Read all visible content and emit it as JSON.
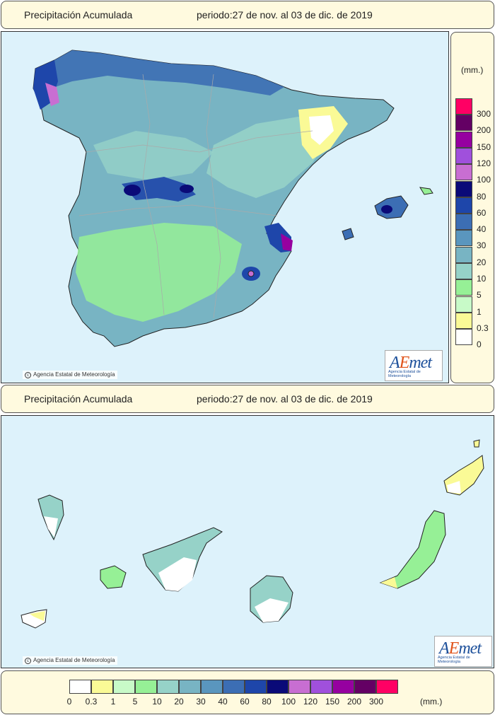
{
  "header_top": {
    "title": "Precipitación Acumulada",
    "period": "periodo:27 de nov. al 03 de dic. de 2019"
  },
  "header_bottom": {
    "title": "Precipitación Acumulada",
    "period": "periodo:27 de nov. al 03 de dic. de 2019"
  },
  "credit": "Agencia Estatal de Meteorología",
  "logo": {
    "name": "AEMet",
    "tagline": "Agencia Estatal de Meteorología"
  },
  "legend": {
    "unit": "(mm.)",
    "levels": [
      {
        "label": "0",
        "color": "#ffffff"
      },
      {
        "label": "0.3",
        "color": "#fafa96"
      },
      {
        "label": "1",
        "color": "#c8fac8"
      },
      {
        "label": "5",
        "color": "#96f096"
      },
      {
        "label": "10",
        "color": "#96d2c8"
      },
      {
        "label": "20",
        "color": "#78b4c3"
      },
      {
        "label": "30",
        "color": "#5a96be"
      },
      {
        "label": "40",
        "color": "#3c6eb4"
      },
      {
        "label": "60",
        "color": "#1e46aa"
      },
      {
        "label": "80",
        "color": "#0a0a78"
      },
      {
        "label": "100",
        "color": "#c86ed2"
      },
      {
        "label": "120",
        "color": "#a050dc"
      },
      {
        "label": "150",
        "color": "#9600a0"
      },
      {
        "label": "200",
        "color": "#640064"
      },
      {
        "label": "300",
        "color": "#ff0064"
      }
    ]
  }
}
